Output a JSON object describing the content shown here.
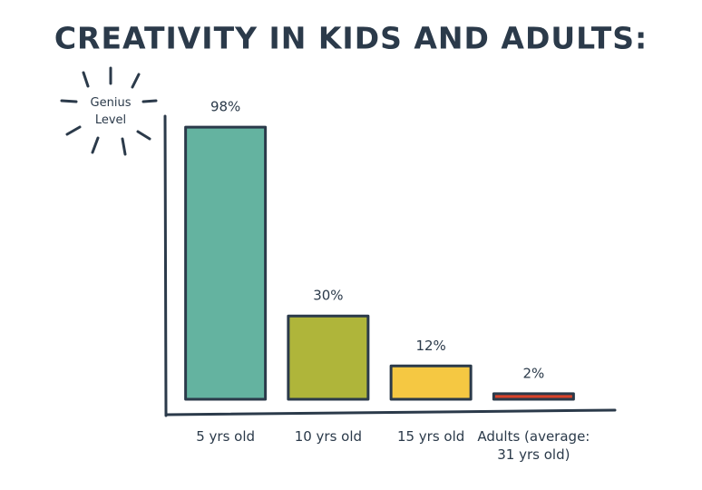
{
  "chart_data": {
    "type": "bar",
    "title": "CREATIVITY IN KIDS AND ADULTS:",
    "annotation": "Genius Level",
    "categories": [
      "5 yrs old",
      "10 yrs old",
      "15 yrs old",
      "Adults (average: 31 yrs old)"
    ],
    "values": [
      98,
      30,
      12,
      2
    ],
    "value_labels": [
      "98%",
      "30%",
      "12%",
      "2%"
    ],
    "colors": [
      "#64b3a0",
      "#afb53a",
      "#f5c842",
      "#d9432a"
    ],
    "ylim": [
      0,
      100
    ]
  }
}
